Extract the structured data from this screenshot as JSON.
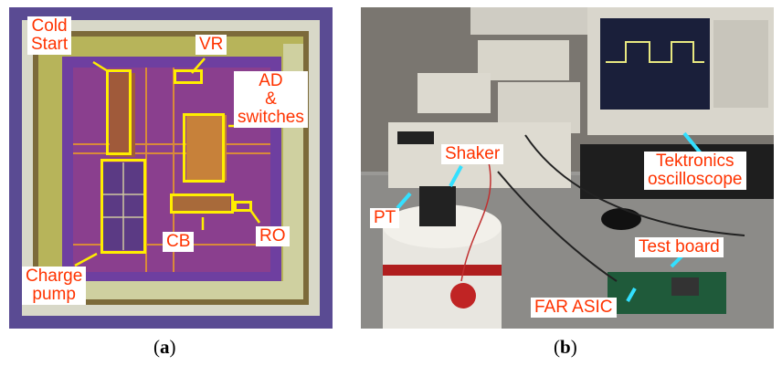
{
  "panel_a": {
    "caption_letter": "a",
    "labels": {
      "cold_start_1": "Cold",
      "cold_start_2": "Start",
      "vr": "VR",
      "ad_1": "AD",
      "ad_2": "&",
      "ad_3": "switches",
      "cb": "CB",
      "ro": "RO",
      "charge_pump_1": "Charge",
      "charge_pump_2": "pump"
    }
  },
  "panel_b": {
    "caption_letter": "b",
    "labels": {
      "shaker": "Shaker",
      "pt": "PT",
      "tektronics_1": "Tektronics",
      "tektronics_2": "oscilloscope",
      "test_board": "Test board",
      "far_asic": "FAR ASIC"
    }
  }
}
